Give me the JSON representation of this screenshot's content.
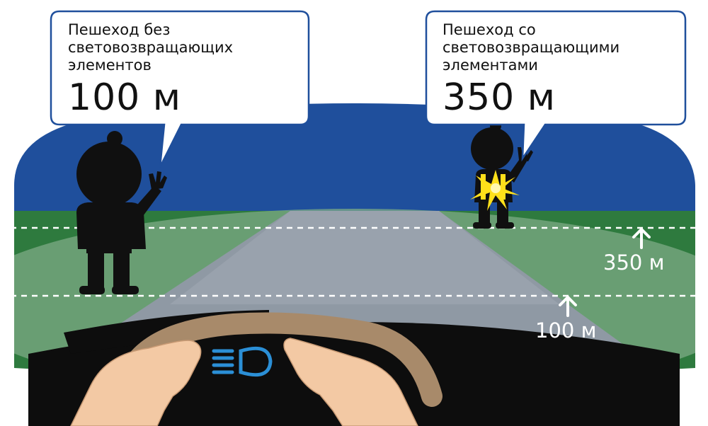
{
  "callout_left": {
    "line1": "Пешеход без",
    "line2": "световозвращающих",
    "line3": "элементов",
    "distance": "100 м"
  },
  "callout_right": {
    "line1": "Пешеход со",
    "line2": "световозвращающими",
    "line3": "элементами",
    "distance": "350 м"
  },
  "markers": {
    "far_label": "350 м",
    "near_label": "100 м"
  },
  "dashboard": {
    "indicator": "headlight-low-beam-icon"
  },
  "colors": {
    "sky": "#1f4f9c",
    "grass": "#2e7a3e",
    "road": "#8f99a4",
    "dashboard": "#0d0d0d",
    "steering_wheel": "#a88a6a",
    "hands": "#f3c9a4",
    "reflector": "#ffe01a",
    "indicator": "#2b8fd6"
  }
}
